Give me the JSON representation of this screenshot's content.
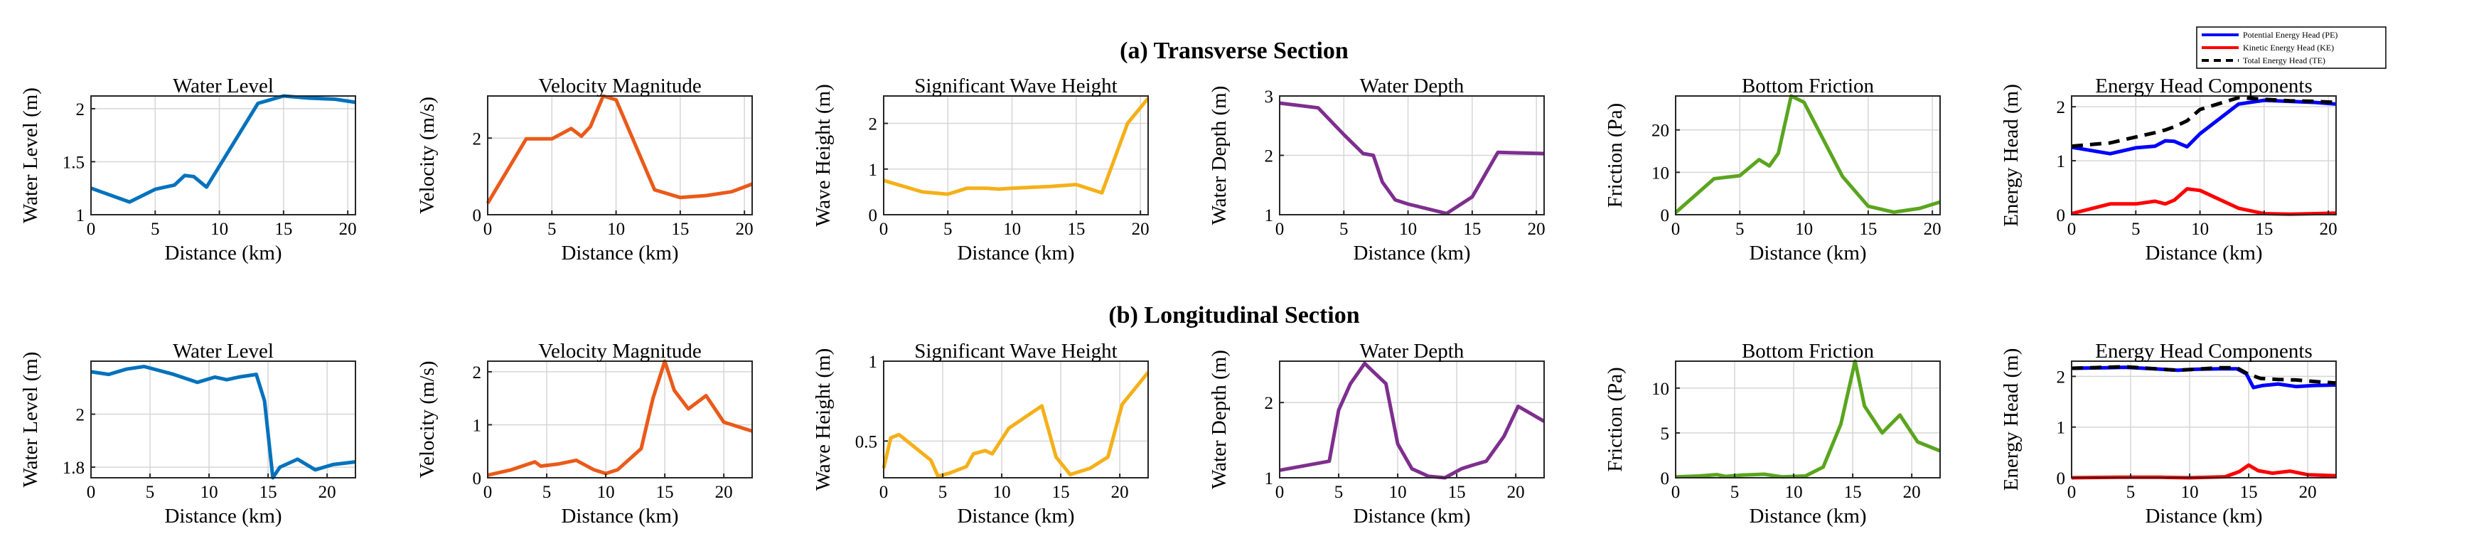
{
  "section_titles": [
    "(a) Transverse Section",
    "(b) Longitudinal Section"
  ],
  "legend": {
    "entries": [
      {
        "label": "Potential Energy Head (PE)",
        "color": "#0000ff",
        "dash": "solid"
      },
      {
        "label": "Kinetic Energy Head (KE)",
        "color": "#ff0000",
        "dash": "solid"
      },
      {
        "label": "Total Energy Head (TE)",
        "color": "#000000",
        "dash": "dashed"
      }
    ]
  },
  "chart_data": [
    {
      "type": "line",
      "section": "transverse",
      "title": "Water Level",
      "xlabel": "Distance (km)",
      "ylabel": "Water Level (m)",
      "xlim": [
        0,
        20.6
      ],
      "ylim": [
        1,
        2.12
      ],
      "xticks": [
        "0",
        "5",
        "10",
        "15",
        "20"
      ],
      "yticks": [
        "1",
        "1.5",
        "2"
      ],
      "grid": true,
      "series": [
        {
          "color": "#0072bd",
          "x": [
            0,
            3,
            5,
            6.5,
            7.3,
            8,
            9,
            13,
            15,
            17,
            19,
            20.6
          ],
          "y": [
            1.25,
            1.12,
            1.24,
            1.28,
            1.37,
            1.36,
            1.26,
            2.05,
            2.12,
            2.1,
            2.09,
            2.06
          ]
        }
      ]
    },
    {
      "type": "line",
      "section": "transverse",
      "title": "Velocity Magnitude",
      "xlabel": "Distance (km)",
      "ylabel": "Velocity (m/s)",
      "xlim": [
        0,
        20.6
      ],
      "ylim": [
        0,
        3.1
      ],
      "xticks": [
        "0",
        "5",
        "10",
        "15",
        "20"
      ],
      "yticks": [
        "0",
        "2"
      ],
      "grid": true,
      "series": [
        {
          "color": "#ea5a1a",
          "x": [
            0,
            3,
            5,
            6.5,
            7.3,
            8,
            9,
            10,
            13,
            15,
            17,
            19,
            20.6
          ],
          "y": [
            0.3,
            1.98,
            1.98,
            2.25,
            2.05,
            2.3,
            3.1,
            3.0,
            0.65,
            0.45,
            0.5,
            0.6,
            0.8
          ]
        }
      ]
    },
    {
      "type": "line",
      "section": "transverse",
      "title": "Significant Wave Height",
      "xlabel": "Distance (km)",
      "ylabel": "Wave Height (m)",
      "xlim": [
        0,
        20.6
      ],
      "ylim": [
        0,
        2.6
      ],
      "xticks": [
        "0",
        "5",
        "10",
        "15",
        "20"
      ],
      "yticks": [
        "0",
        "1",
        "2"
      ],
      "grid": true,
      "series": [
        {
          "color": "#f5b019",
          "x": [
            0,
            3,
            5,
            6.5,
            7.3,
            8,
            9,
            10,
            13,
            15,
            17,
            19,
            20.6
          ],
          "y": [
            0.75,
            0.5,
            0.45,
            0.58,
            0.58,
            0.58,
            0.56,
            0.58,
            0.62,
            0.66,
            0.48,
            2.0,
            2.55
          ]
        }
      ]
    },
    {
      "type": "line",
      "section": "transverse",
      "title": "Water Depth",
      "xlabel": "Distance (km)",
      "ylabel": "Water Depth (m)",
      "xlim": [
        0,
        20.6
      ],
      "ylim": [
        1,
        3
      ],
      "xticks": [
        "0",
        "5",
        "10",
        "15",
        "20"
      ],
      "yticks": [
        "1",
        "2",
        "3"
      ],
      "grid": true,
      "series": [
        {
          "color": "#7e2f8e",
          "x": [
            0,
            3,
            5,
            6.5,
            7.3,
            8,
            9,
            10,
            13,
            15,
            17,
            19,
            20.6
          ],
          "y": [
            2.88,
            2.8,
            2.35,
            2.03,
            2.0,
            1.55,
            1.25,
            1.18,
            1.02,
            1.3,
            2.05,
            2.04,
            2.03
          ]
        }
      ]
    },
    {
      "type": "line",
      "section": "transverse",
      "title": "Bottom Friction",
      "xlabel": "Distance (km)",
      "ylabel": "Friction (Pa)",
      "xlim": [
        0,
        20.6
      ],
      "ylim": [
        0,
        28
      ],
      "xticks": [
        "0",
        "5",
        "10",
        "15",
        "20"
      ],
      "yticks": [
        "0",
        "10",
        "20"
      ],
      "grid": true,
      "series": [
        {
          "color": "#5aa51e",
          "x": [
            0,
            3,
            5,
            6.5,
            7.3,
            8,
            9,
            10,
            13,
            15,
            17,
            19,
            20.6
          ],
          "y": [
            0.5,
            8.5,
            9.2,
            13,
            11.5,
            14.5,
            28,
            26.5,
            9,
            2,
            0.6,
            1.5,
            3
          ]
        }
      ]
    },
    {
      "type": "line",
      "section": "transverse",
      "title": "Energy Head Components",
      "xlabel": "Distance (km)",
      "ylabel": "Energy Head (m)",
      "xlim": [
        0,
        20.6
      ],
      "ylim": [
        0,
        2.2
      ],
      "xticks": [
        "0",
        "5",
        "10",
        "15",
        "20"
      ],
      "yticks": [
        "0",
        "1",
        "2"
      ],
      "grid": true,
      "series": [
        {
          "name": "Potential Energy Head (PE)",
          "color": "#0000ff",
          "dash": "solid",
          "x": [
            0,
            3,
            5,
            6.5,
            7.3,
            8,
            9,
            10,
            13,
            15,
            17,
            19,
            20.6
          ],
          "y": [
            1.25,
            1.13,
            1.24,
            1.27,
            1.37,
            1.36,
            1.26,
            1.5,
            2.05,
            2.12,
            2.1,
            2.08,
            2.05
          ]
        },
        {
          "name": "Kinetic Energy Head (KE)",
          "color": "#ff0000",
          "dash": "solid",
          "x": [
            0,
            3,
            5,
            6.5,
            7.3,
            8,
            9,
            10,
            13,
            15,
            17,
            19,
            20.6
          ],
          "y": [
            0.02,
            0.2,
            0.2,
            0.25,
            0.2,
            0.27,
            0.48,
            0.45,
            0.12,
            0.02,
            0.01,
            0.02,
            0.03
          ]
        },
        {
          "name": "Total Energy Head (TE)",
          "color": "#000000",
          "dash": "dashed",
          "x": [
            0,
            3,
            5,
            6.5,
            7.3,
            8,
            9,
            10,
            13,
            15,
            17,
            19,
            20.6
          ],
          "y": [
            1.27,
            1.33,
            1.44,
            1.52,
            1.57,
            1.63,
            1.74,
            1.95,
            2.17,
            2.14,
            2.11,
            2.1,
            2.08
          ]
        }
      ]
    },
    {
      "type": "line",
      "section": "longitudinal",
      "title": "Water Level",
      "xlabel": "Distance (km)",
      "ylabel": "Water Level (m)",
      "xlim": [
        0,
        22.4
      ],
      "ylim": [
        1.76,
        2.2
      ],
      "xticks": [
        "0",
        "5",
        "10",
        "15",
        "20"
      ],
      "yticks": [
        "1.8",
        "2"
      ],
      "grid": true,
      "series": [
        {
          "color": "#0072bd",
          "x": [
            0,
            1.5,
            3,
            4.5,
            7,
            9,
            10.5,
            11.5,
            12.5,
            14,
            14.7,
            15.4,
            16,
            17.5,
            19,
            20.5,
            22.4
          ],
          "y": [
            2.16,
            2.15,
            2.17,
            2.18,
            2.15,
            2.12,
            2.14,
            2.13,
            2.14,
            2.15,
            2.05,
            1.76,
            1.8,
            1.83,
            1.79,
            1.81,
            1.82
          ]
        }
      ]
    },
    {
      "type": "line",
      "section": "longitudinal",
      "title": "Velocity Magnitude",
      "xlabel": "Distance (km)",
      "ylabel": "Velocity (m/s)",
      "xlim": [
        0,
        22.4
      ],
      "ylim": [
        0,
        2.2
      ],
      "xticks": [
        "0",
        "5",
        "10",
        "15",
        "20"
      ],
      "yticks": [
        "0",
        "1",
        "2"
      ],
      "grid": true,
      "series": [
        {
          "color": "#ea5a1a",
          "x": [
            0,
            2,
            4,
            4.5,
            6,
            7.5,
            9,
            10,
            11,
            13,
            14,
            15,
            15.8,
            17,
            18.5,
            20,
            22.4
          ],
          "y": [
            0.05,
            0.15,
            0.3,
            0.22,
            0.26,
            0.33,
            0.15,
            0.08,
            0.15,
            0.55,
            1.5,
            2.2,
            1.65,
            1.3,
            1.55,
            1.05,
            0.88
          ]
        }
      ]
    },
    {
      "type": "line",
      "section": "longitudinal",
      "title": "Significant Wave Height",
      "xlabel": "Distance (km)",
      "ylabel": "Wave Height (m)",
      "xlim": [
        0,
        22.4
      ],
      "ylim": [
        0.27,
        1
      ],
      "xticks": [
        "0",
        "5",
        "10",
        "15",
        "20"
      ],
      "yticks": [
        "0.5",
        "1"
      ],
      "grid": true,
      "series": [
        {
          "color": "#f5b019",
          "x": [
            0,
            0.6,
            1.3,
            4,
            4.6,
            5.6,
            7,
            7.6,
            8.6,
            9.2,
            10.6,
            12,
            13.4,
            14.6,
            15.8,
            17.5,
            19,
            20.2,
            22.4
          ],
          "y": [
            0.33,
            0.52,
            0.54,
            0.38,
            0.28,
            0.3,
            0.34,
            0.42,
            0.44,
            0.42,
            0.58,
            0.65,
            0.72,
            0.4,
            0.29,
            0.33,
            0.4,
            0.73,
            0.93
          ]
        }
      ]
    },
    {
      "type": "line",
      "section": "longitudinal",
      "title": "Water Depth",
      "xlabel": "Distance (km)",
      "ylabel": "Water Depth (m)",
      "xlim": [
        0,
        22.4
      ],
      "ylim": [
        1,
        2.55
      ],
      "xticks": [
        "0",
        "5",
        "10",
        "15",
        "20"
      ],
      "yticks": [
        "1",
        "2"
      ],
      "grid": true,
      "series": [
        {
          "color": "#7e2f8e",
          "x": [
            0,
            4.2,
            5,
            6,
            7.2,
            8,
            9,
            10,
            11.2,
            12.6,
            14,
            15.4,
            16.4,
            17.5,
            19,
            20.2,
            22.4
          ],
          "y": [
            1.1,
            1.22,
            1.9,
            2.25,
            2.52,
            2.4,
            2.25,
            1.45,
            1.12,
            1.02,
            1.0,
            1.12,
            1.17,
            1.22,
            1.55,
            1.95,
            1.75
          ]
        }
      ]
    },
    {
      "type": "line",
      "section": "longitudinal",
      "title": "Bottom Friction",
      "xlabel": "Distance (km)",
      "ylabel": "Friction (Pa)",
      "xlim": [
        0,
        22.4
      ],
      "ylim": [
        0,
        13
      ],
      "xticks": [
        "0",
        "5",
        "10",
        "15",
        "20"
      ],
      "yticks": [
        "0",
        "5",
        "10"
      ],
      "grid": true,
      "series": [
        {
          "color": "#5aa51e",
          "x": [
            0,
            2,
            3.5,
            4.2,
            5.6,
            7.5,
            9,
            11,
            12.5,
            14,
            15.2,
            16,
            17.5,
            19,
            20.5,
            22.4
          ],
          "y": [
            0.1,
            0.2,
            0.35,
            0.15,
            0.3,
            0.4,
            0.1,
            0.2,
            1.2,
            6,
            13,
            8,
            5,
            7,
            4,
            3
          ]
        }
      ]
    },
    {
      "type": "line",
      "section": "longitudinal",
      "title": "Energy Head Components",
      "xlabel": "Distance (km)",
      "ylabel": "Energy Head (m)",
      "xlim": [
        0,
        22.4
      ],
      "ylim": [
        0,
        2.3
      ],
      "xticks": [
        "0",
        "5",
        "10",
        "15",
        "20"
      ],
      "yticks": [
        "0",
        "1",
        "2"
      ],
      "grid": true,
      "series": [
        {
          "name": "Potential Energy Head (PE)",
          "color": "#0000ff",
          "dash": "solid",
          "x": [
            0,
            3,
            4.5,
            7,
            9,
            10.5,
            12.5,
            14,
            14.8,
            15.4,
            16.2,
            17.5,
            19,
            20.5,
            22.4
          ],
          "y": [
            2.16,
            2.17,
            2.18,
            2.15,
            2.12,
            2.14,
            2.15,
            2.15,
            2.05,
            1.78,
            1.82,
            1.85,
            1.8,
            1.82,
            1.83
          ]
        },
        {
          "name": "Kinetic Energy Head (KE)",
          "color": "#ff0000",
          "dash": "solid",
          "x": [
            0,
            4,
            7.5,
            10,
            13,
            14.2,
            15,
            15.8,
            17,
            18.5,
            20,
            22.4
          ],
          "y": [
            0.0,
            0.01,
            0.01,
            0.0,
            0.02,
            0.12,
            0.25,
            0.14,
            0.09,
            0.13,
            0.06,
            0.04
          ]
        },
        {
          "name": "Total Energy Head (TE)",
          "color": "#000000",
          "dash": "dashed",
          "x": [
            0,
            4.5,
            9,
            12.5,
            14,
            15,
            16,
            17.5,
            19,
            20.5,
            22.4
          ],
          "y": [
            2.16,
            2.19,
            2.12,
            2.17,
            2.17,
            2.04,
            1.96,
            1.94,
            1.93,
            1.9,
            1.87
          ]
        }
      ]
    }
  ]
}
